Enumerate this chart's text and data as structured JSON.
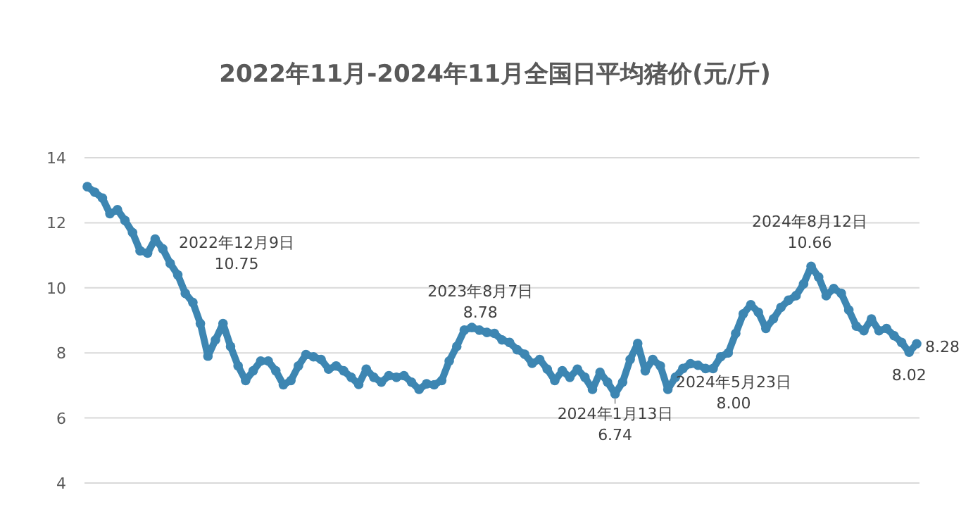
{
  "chart_data": {
    "type": "line",
    "title": "2022年11月-2024年11月全国日平均猪价(元/斤)",
    "categories": [
      null,
      null,
      null,
      null,
      null,
      null,
      null,
      null,
      null,
      null,
      null,
      null,
      null,
      null,
      null,
      null,
      null,
      null,
      null,
      null,
      null,
      null,
      null,
      null,
      null,
      null,
      null,
      null,
      null,
      null,
      null,
      null,
      null,
      null,
      null,
      null,
      null,
      null,
      null,
      null,
      null,
      null,
      null,
      null,
      null,
      null,
      null,
      null,
      null,
      null,
      null,
      null,
      null,
      null,
      null,
      null,
      null,
      null,
      null,
      null,
      null,
      null,
      null,
      null,
      null,
      null,
      null,
      null,
      null,
      null,
      null,
      null,
      null,
      null,
      null,
      null,
      null,
      null,
      null,
      null,
      null,
      null,
      null,
      null,
      null,
      null,
      null,
      null,
      null,
      null,
      null,
      null,
      null,
      null,
      null,
      null,
      null,
      null,
      null,
      null,
      null,
      null,
      null,
      null,
      null,
      null,
      null,
      null,
      null,
      null,
      null
    ],
    "series": [
      {
        "color": "#3d86b2",
        "values": [
          13.11,
          12.94,
          12.76,
          12.28,
          12.4,
          12.07,
          11.7,
          11.14,
          11.07,
          11.5,
          11.2,
          10.75,
          10.4,
          9.83,
          9.55,
          8.9,
          7.9,
          8.4,
          8.9,
          8.2,
          7.6,
          7.15,
          7.45,
          7.75,
          7.75,
          7.45,
          7.02,
          7.15,
          7.6,
          7.95,
          7.88,
          7.8,
          7.5,
          7.6,
          7.45,
          7.25,
          7.03,
          7.5,
          7.25,
          7.1,
          7.3,
          7.25,
          7.3,
          7.1,
          6.88,
          7.05,
          7.02,
          7.15,
          7.75,
          8.2,
          8.7,
          8.78,
          8.7,
          8.63,
          8.6,
          8.4,
          8.32,
          8.1,
          7.96,
          7.68,
          7.8,
          7.5,
          7.15,
          7.45,
          7.25,
          7.5,
          7.25,
          6.88,
          7.4,
          7.1,
          6.74,
          7.1,
          7.8,
          8.29,
          7.45,
          7.8,
          7.6,
          6.88,
          7.25,
          7.52,
          7.67,
          7.62,
          7.52,
          7.52,
          7.88,
          8.0,
          8.6,
          9.2,
          9.48,
          9.25,
          8.75,
          9.05,
          9.4,
          9.62,
          9.76,
          10.12,
          10.66,
          10.33,
          9.76,
          9.98,
          9.83,
          9.32,
          8.82,
          8.68,
          9.04,
          8.68,
          8.75,
          8.53,
          8.32,
          8.02,
          8.28
        ]
      }
    ],
    "ylim": [
      4,
      14
    ],
    "yticks": [
      4,
      6,
      8,
      10,
      12,
      14
    ],
    "grid": "y",
    "marker": "circle",
    "tick_labels": "y",
    "annotations": [
      "2022年12月9日\n10.75",
      {
        "text": "2023年8月7日\n8.78",
        "y": 8.78
      },
      {
        "text": "2024年1月13日\n6.74",
        "y": 6.74
      },
      "2024年5月23日\n8.00",
      {
        "text": "2024年8月12日\n10.66",
        "y": 10.66
      },
      {
        "text": "8.02",
        "y": 8.02
      },
      "8.28"
    ]
  }
}
